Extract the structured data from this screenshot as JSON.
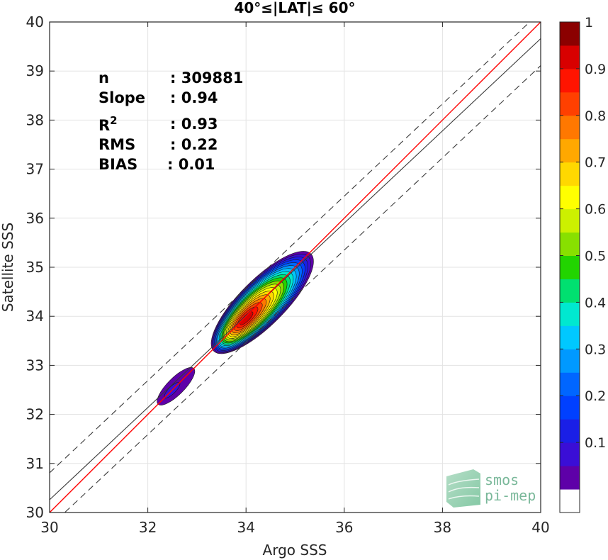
{
  "chart_data": {
    "type": "heatmap",
    "title": "40°≤|LAT|≤ 60°",
    "xlabel": "Argo SSS",
    "ylabel": "Satellite SSS",
    "xlim": [
      30,
      40
    ],
    "ylim": [
      30,
      40
    ],
    "xticks": [
      "30",
      "32",
      "34",
      "36",
      "38",
      "40"
    ],
    "yticks": [
      "30",
      "31",
      "32",
      "33",
      "34",
      "35",
      "36",
      "37",
      "38",
      "39",
      "40"
    ],
    "grid": true,
    "stats": [
      {
        "label": "n",
        "value": ": 309881"
      },
      {
        "label": "Slope",
        "value": ": 0.94"
      },
      {
        "label": "R",
        "sup": "2",
        "value": ": 0.93"
      },
      {
        "label": "RMS",
        "value": ": 0.22"
      },
      {
        "label": "BIAS",
        "value": ": 0.01"
      }
    ],
    "lines": {
      "identity": {
        "slope": 1,
        "intercept": 0,
        "color": "#ff0000"
      },
      "fit": {
        "slope": 0.94,
        "intercept": 2.06,
        "color": "#3a3a3a"
      },
      "fit_band": {
        "offset": 0.55,
        "color": "#3a3a3a",
        "style": "dashed"
      }
    },
    "density_blobs": [
      {
        "cx": 32.65,
        "cy": 32.65,
        "major": 0.75,
        "minor": 0.25,
        "peak": 0.12
      },
      {
        "cx": 34.35,
        "cy": 34.3,
        "major": 1.45,
        "minor": 0.48,
        "peak": 1.0
      }
    ],
    "contour_levels": [
      0.05,
      0.1,
      0.15,
      0.2,
      0.25,
      0.3,
      0.35,
      0.4,
      0.45,
      0.5,
      0.55,
      0.6,
      0.65,
      0.7,
      0.75,
      0.8,
      0.85,
      0.9,
      0.95
    ],
    "colorbar": {
      "ticks": [
        "0.1",
        "0.2",
        "0.3",
        "0.4",
        "0.5",
        "0.6",
        "0.7",
        "0.8",
        "0.9",
        "1"
      ],
      "colors": [
        "#ffffff",
        "#5e00a8",
        "#3a0ed6",
        "#1a1fe6",
        "#0040ff",
        "#0066ff",
        "#0099ff",
        "#00c8ff",
        "#00e8d0",
        "#00e070",
        "#22d400",
        "#88e000",
        "#ccf000",
        "#ffff00",
        "#ffd800",
        "#ffa800",
        "#ff7800",
        "#ff4000",
        "#ff1400",
        "#d80000",
        "#8b0000"
      ]
    },
    "watermark": {
      "line1": "smos",
      "line2": "pi-mep"
    }
  }
}
